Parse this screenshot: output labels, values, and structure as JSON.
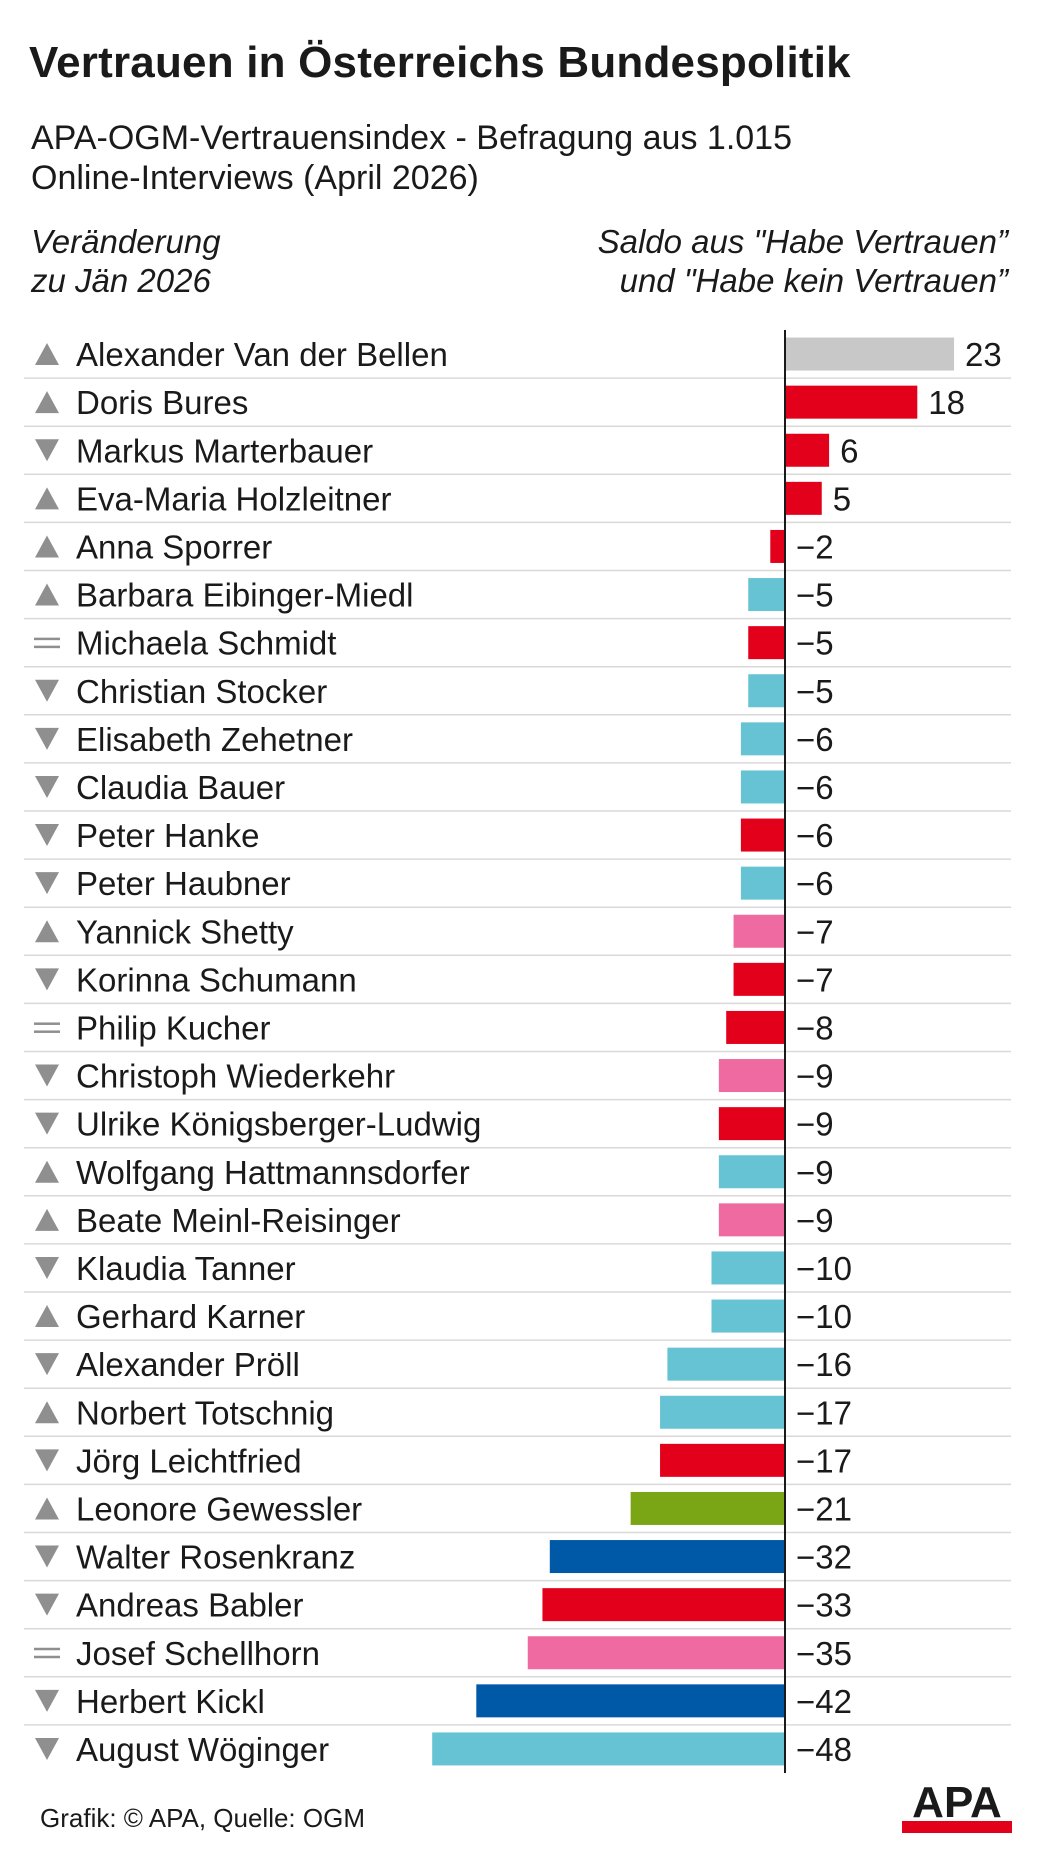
{
  "header": {
    "title": "Vertrauen in Österreichs Bundespolitik",
    "subtitle_line1": "APA-OGM-Vertrauensindex - Befragung aus 1.015",
    "subtitle_line2": "Online-Interviews (April 2026)",
    "left_col_line1": "Veränderung",
    "left_col_line2": "zu Jän 2026",
    "right_col_line1": "Saldo aus \"Habe Vertrauen”",
    "right_col_line2": "und \"Habe kein Vertrauen”"
  },
  "colors": {
    "grey": "#c8c8c8",
    "red": "#e2001a",
    "cyan": "#66c3d3",
    "pink": "#ee6aa0",
    "green": "#7aa616",
    "blue": "#0059a6",
    "arrow": "#8f8f8f",
    "separator": "#d9d9d9",
    "axis": "#1a1a1a"
  },
  "chart_data": {
    "type": "bar",
    "orientation": "horizontal",
    "xlim": [
      -48,
      23
    ],
    "categories": [
      "Alexander Van der Bellen",
      "Doris Bures",
      "Markus Marterbauer",
      "Eva-Maria Holzleitner",
      "Anna Sporrer",
      "Barbara Eibinger-Miedl",
      "Michaela Schmidt",
      "Christian Stocker",
      "Elisabeth Zehetner",
      "Claudia Bauer",
      "Peter Hanke",
      "Peter Haubner",
      "Yannick Shetty",
      "Korinna Schumann",
      "Philip Kucher",
      "Christoph Wiederkehr",
      "Ulrike Königsberger-Ludwig",
      "Wolfgang Hattmannsdorfer",
      "Beate Meinl-Reisinger",
      "Klaudia Tanner",
      "Gerhard Karner",
      "Alexander Pröll",
      "Norbert Totschnig",
      "Jörg Leichtfried",
      "Leonore Gewessler",
      "Walter Rosenkranz",
      "Andreas Babler",
      "Josef Schellhorn",
      "Herbert Kickl",
      "August Wöginger"
    ],
    "values": [
      23,
      18,
      6,
      5,
      -2,
      -5,
      -5,
      -5,
      -6,
      -6,
      -6,
      -6,
      -7,
      -7,
      -8,
      -9,
      -9,
      -9,
      -9,
      -10,
      -10,
      -16,
      -17,
      -17,
      -21,
      -32,
      -33,
      -35,
      -42,
      -48
    ],
    "value_labels": [
      "23",
      "18",
      "6",
      "5",
      "−2",
      "−5",
      "−5",
      "−5",
      "−6",
      "−6",
      "−6",
      "−6",
      "−7",
      "−7",
      "−8",
      "−9",
      "−9",
      "−9",
      "−9",
      "−10",
      "−10",
      "−16",
      "−17",
      "−17",
      "−21",
      "−32",
      "−33",
      "−35",
      "−42",
      "−48"
    ],
    "changes": [
      "up",
      "up",
      "down",
      "up",
      "up",
      "up",
      "same",
      "down",
      "down",
      "down",
      "down",
      "down",
      "up",
      "down",
      "same",
      "down",
      "down",
      "up",
      "up",
      "down",
      "up",
      "down",
      "up",
      "down",
      "up",
      "down",
      "down",
      "same",
      "down",
      "down"
    ],
    "bar_colors": [
      "grey",
      "red",
      "red",
      "red",
      "red",
      "cyan",
      "red",
      "cyan",
      "cyan",
      "cyan",
      "red",
      "cyan",
      "pink",
      "red",
      "red",
      "pink",
      "red",
      "cyan",
      "pink",
      "cyan",
      "cyan",
      "cyan",
      "cyan",
      "red",
      "green",
      "blue",
      "red",
      "pink",
      "blue",
      "cyan"
    ]
  },
  "footer": {
    "credit": "Grafik: © APA, Quelle: OGM",
    "logo_text": "APA"
  }
}
